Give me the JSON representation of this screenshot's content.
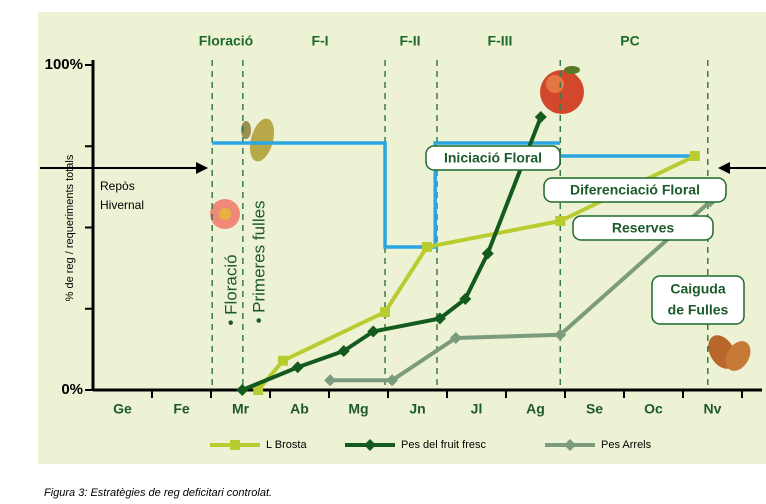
{
  "chart_data": {
    "type": "line",
    "phases": [
      "Floració",
      "F-I",
      "F-II",
      "F-III",
      "PC"
    ],
    "phase_lines": [
      2.02,
      2.54,
      4.95,
      5.83,
      7.92,
      10.42
    ],
    "y_label": "% de reg / requeriments totals",
    "categories": [
      "Ge",
      "Fe",
      "Mr",
      "Ab",
      "Mg",
      "Jn",
      "Jl",
      "Ag",
      "Se",
      "Oc",
      "Nv"
    ],
    "xlim": [
      0,
      11
    ],
    "ylim": [
      0,
      100
    ],
    "yticks": [
      {
        "value": 0,
        "label": "0%"
      },
      {
        "value": 100,
        "label": "100%"
      }
    ],
    "yminor": [
      25,
      50,
      75
    ],
    "series": [
      {
        "name": "L Brosta",
        "color": "#b8cc30",
        "marker": "square",
        "x": [
          2.8,
          3.22,
          4.95,
          5.66,
          7.92,
          10.2
        ],
        "values": [
          0,
          9,
          24,
          44,
          52,
          72
        ]
      },
      {
        "name": "Pes del fruit fresc",
        "color": "#145a1e",
        "marker": "diamond",
        "x": [
          2.53,
          3.47,
          4.25,
          4.75,
          5.88,
          6.31,
          6.69,
          7.59
        ],
        "values": [
          0,
          7,
          12,
          18,
          22,
          28,
          42,
          84
        ]
      },
      {
        "name": "Pes Arrels",
        "color": "#7b9c7c",
        "marker": "diamond",
        "x": [
          4.02,
          5.07,
          6.15,
          7.92,
          10.46
        ],
        "values": [
          3,
          3,
          16,
          17,
          58
        ]
      }
    ],
    "requirement": {
      "color": "#2aa6e0",
      "x": [
        2.02,
        4.95,
        4.95,
        5.8,
        5.8,
        7.92,
        null,
        5.8,
        10.2
      ],
      "values": [
        76,
        76,
        44,
        44,
        76,
        76,
        null,
        72,
        72
      ]
    },
    "rest_label": [
      "Repòs",
      "Hivernal"
    ],
    "rotated_labels": [
      "• Floració",
      "• Primeres fulles"
    ],
    "annotations": [
      "Iniciació Floral",
      "Diferenciació Floral",
      "Reserves"
    ],
    "fall_label": [
      "Caiguda",
      "de Fulles"
    ],
    "caption": "Figura 3: Estratègies de reg deficitari controlat."
  }
}
